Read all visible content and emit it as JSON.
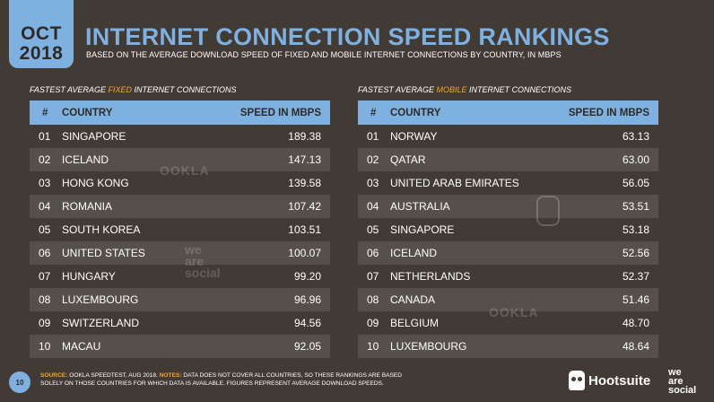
{
  "header": {
    "date_month": "OCT",
    "date_year": "2018",
    "title": "INTERNET CONNECTION SPEED RANKINGS",
    "subtitle": "BASED ON THE AVERAGE DOWNLOAD SPEED OF FIXED AND MOBILE INTERNET CONNECTIONS BY COUNTRY, IN MBPS"
  },
  "fixed": {
    "label_pre": "FASTEST AVERAGE ",
    "label_hl": "FIXED",
    "label_post": " INTERNET CONNECTIONS",
    "columns": {
      "num": "#",
      "country": "COUNTRY",
      "speed": "SPEED IN MBPS"
    },
    "rows": [
      {
        "num": "01",
        "country": "SINGAPORE",
        "speed": "189.38"
      },
      {
        "num": "02",
        "country": "ICELAND",
        "speed": "147.13"
      },
      {
        "num": "03",
        "country": "HONG KONG",
        "speed": "139.58"
      },
      {
        "num": "04",
        "country": "ROMANIA",
        "speed": "107.42"
      },
      {
        "num": "05",
        "country": "SOUTH KOREA",
        "speed": "103.51"
      },
      {
        "num": "06",
        "country": "UNITED STATES",
        "speed": "100.07"
      },
      {
        "num": "07",
        "country": "HUNGARY",
        "speed": "99.20"
      },
      {
        "num": "08",
        "country": "LUXEMBOURG",
        "speed": "96.96"
      },
      {
        "num": "09",
        "country": "SWITZERLAND",
        "speed": "94.56"
      },
      {
        "num": "10",
        "country": "MACAU",
        "speed": "92.05"
      }
    ]
  },
  "mobile": {
    "label_pre": "FASTEST AVERAGE ",
    "label_hl": "MOBILE",
    "label_post": " INTERNET CONNECTIONS",
    "columns": {
      "num": "#",
      "country": "COUNTRY",
      "speed": "SPEED IN MBPS"
    },
    "rows": [
      {
        "num": "01",
        "country": "NORWAY",
        "speed": "63.13"
      },
      {
        "num": "02",
        "country": "QATAR",
        "speed": "63.00"
      },
      {
        "num": "03",
        "country": "UNITED ARAB EMIRATES",
        "speed": "56.05"
      },
      {
        "num": "04",
        "country": "AUSTRALIA",
        "speed": "53.51"
      },
      {
        "num": "05",
        "country": "SINGAPORE",
        "speed": "53.18"
      },
      {
        "num": "06",
        "country": "ICELAND",
        "speed": "52.56"
      },
      {
        "num": "07",
        "country": "NETHERLANDS",
        "speed": "52.37"
      },
      {
        "num": "08",
        "country": "CANADA",
        "speed": "51.46"
      },
      {
        "num": "09",
        "country": "BELGIUM",
        "speed": "48.70"
      },
      {
        "num": "10",
        "country": "LUXEMBOURG",
        "speed": "48.64"
      }
    ]
  },
  "watermarks": {
    "ookla": "OOKLA",
    "weare_1": "we",
    "weare_2": "are",
    "weare_3": "social"
  },
  "footer": {
    "page_number": "10",
    "source_key": "SOURCE:",
    "source_text": " OOKLA SPEEDTEST, AUG 2018. ",
    "notes_key": "NOTES:",
    "notes_text": " DATA DOES NOT COVER ALL COUNTRIES, SO THESE RANKINGS ARE BASED SOLELY ON THOSE COUNTRIES FOR WHICH DATA IS AVAILABLE. FIGURES REPRESENT AVERAGE DOWNLOAD SPEEDS.",
    "hootsuite": "Hootsuite",
    "was_1": "we",
    "was_2": "are",
    "was_3": "social"
  },
  "colors": {
    "background": "#423b35",
    "accent_blue": "#7fb1e0",
    "accent_orange": "#f6a623",
    "row_alt": "#56504a"
  },
  "icons": {
    "hootsuite_logo": "owl-icon"
  }
}
